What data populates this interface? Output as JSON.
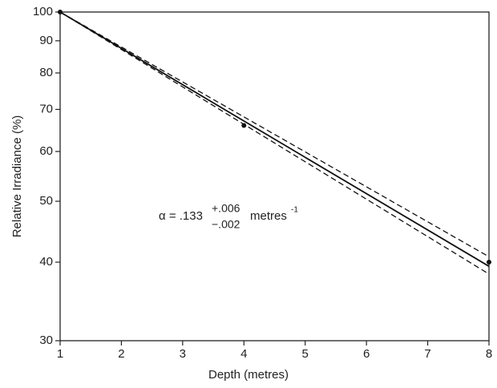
{
  "chart_data": {
    "type": "line",
    "xlabel": "Depth (metres)",
    "ylabel": "Relative Irradiance (%)",
    "xlim": [
      1,
      8
    ],
    "xticks": [
      1,
      2,
      3,
      4,
      5,
      6,
      7,
      8
    ],
    "ylim": [
      30,
      100
    ],
    "yticks": [
      30,
      40,
      50,
      60,
      70,
      80,
      90,
      100
    ],
    "log_y": true,
    "series": [
      {
        "color": "#111111",
        "dash": false,
        "markers": false,
        "x": [
          1,
          8
        ],
        "values": [
          100,
          39.4
        ]
      },
      {
        "color": "#111111",
        "dash": true,
        "markers": false,
        "x": [
          1,
          8
        ],
        "values": [
          100,
          40.8
        ]
      },
      {
        "color": "#111111",
        "dash": true,
        "markers": false,
        "x": [
          1,
          8
        ],
        "values": [
          100,
          38.3
        ]
      },
      {
        "color": "#111111",
        "dash": false,
        "markers": true,
        "x": [
          1,
          4,
          8
        ],
        "values": [
          100,
          66,
          40
        ]
      }
    ],
    "annotation": {
      "main": "α = .133",
      "plus": "+.006",
      "minus": "−.002",
      "unit": "metres",
      "exponent": "-1"
    }
  }
}
